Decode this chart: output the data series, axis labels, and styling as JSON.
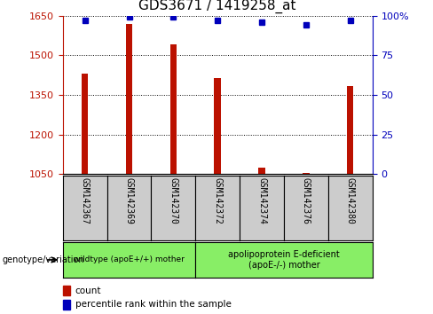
{
  "title": "GDS3671 / 1419258_at",
  "samples": [
    "GSM142367",
    "GSM142369",
    "GSM142370",
    "GSM142372",
    "GSM142374",
    "GSM142376",
    "GSM142380"
  ],
  "counts": [
    1430,
    1620,
    1540,
    1415,
    1075,
    1055,
    1385
  ],
  "percentiles": [
    97,
    99,
    99,
    97,
    96,
    94,
    97
  ],
  "ylim_left": [
    1050,
    1650
  ],
  "ylim_right": [
    0,
    100
  ],
  "yticks_left": [
    1050,
    1200,
    1350,
    1500,
    1650
  ],
  "yticks_right": [
    0,
    25,
    50,
    75,
    100
  ],
  "bar_color": "#bb1100",
  "dot_color": "#0000bb",
  "group1_label": "wildtype (apoE+/+) mother",
  "group2_label": "apolipoprotein E-deficient\n(apoE-/-) mother",
  "group_bg_color": "#88ee66",
  "sample_bg_color": "#cccccc",
  "legend_count_label": "count",
  "legend_pct_label": "percentile rank within the sample",
  "genotype_label": "genotype/variation",
  "title_fontsize": 11,
  "axis_tick_fontsize": 8,
  "bar_width": 0.15,
  "figsize": [
    4.88,
    3.54
  ],
  "dpi": 100
}
